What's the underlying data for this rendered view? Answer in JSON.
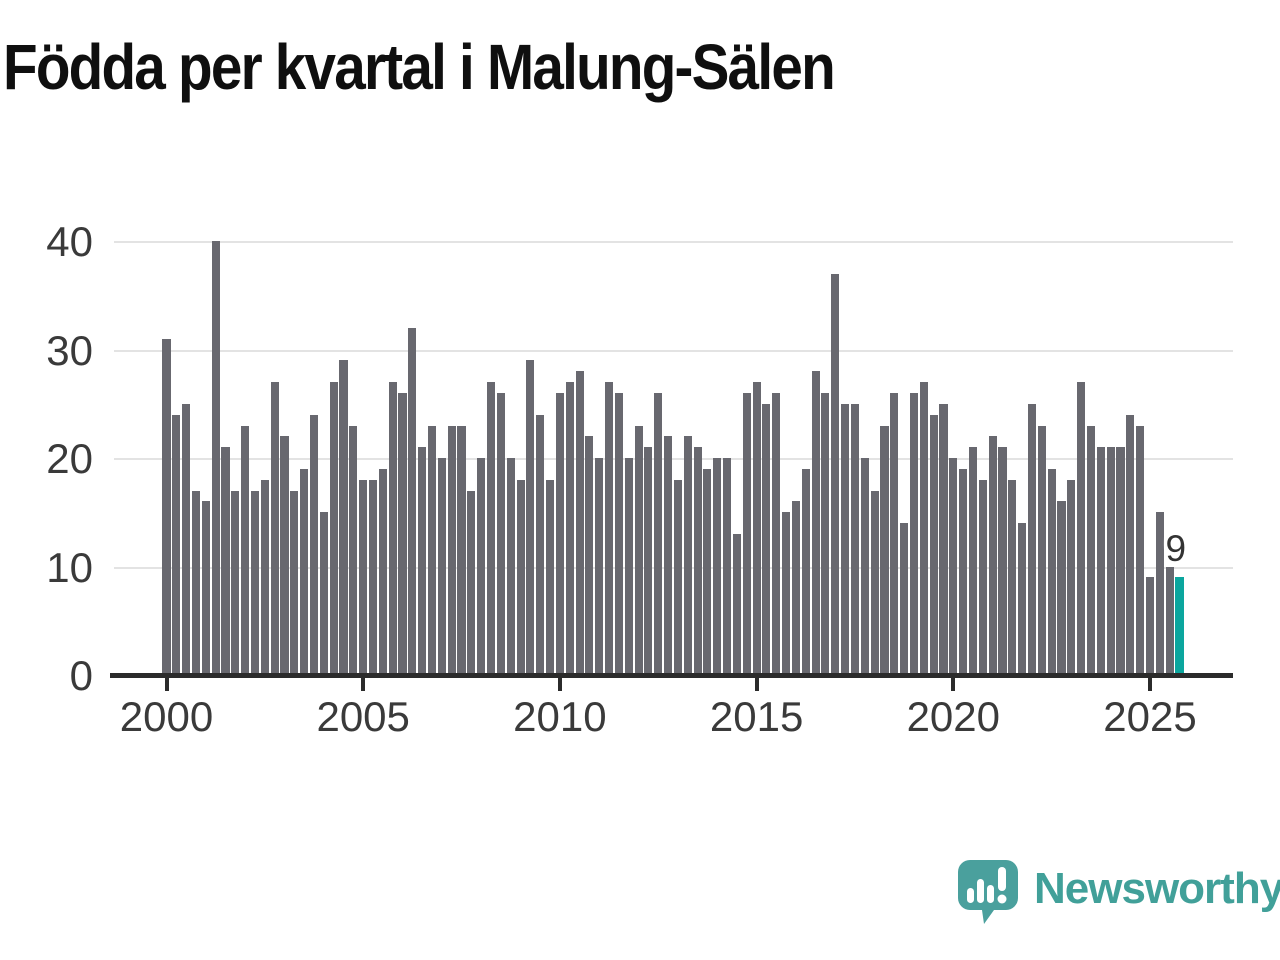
{
  "title": "Födda per kvartal i Malung-Sälen",
  "chart_data": {
    "type": "bar",
    "title": "Födda per kvartal i Malung-Sälen",
    "x_start": "2000 Q1",
    "x_end": "2025 Q4",
    "quarters_per_year": 4,
    "start_year": 2000,
    "values": [
      31,
      24,
      25,
      17,
      16,
      40,
      21,
      17,
      23,
      17,
      18,
      27,
      22,
      17,
      19,
      24,
      15,
      27,
      29,
      23,
      18,
      18,
      19,
      27,
      26,
      32,
      21,
      23,
      20,
      23,
      23,
      17,
      20,
      27,
      26,
      20,
      18,
      29,
      24,
      18,
      26,
      27,
      28,
      22,
      20,
      27,
      26,
      20,
      23,
      21,
      26,
      22,
      18,
      22,
      21,
      19,
      20,
      20,
      13,
      26,
      27,
      25,
      26,
      15,
      16,
      19,
      28,
      26,
      37,
      25,
      25,
      20,
      17,
      23,
      26,
      14,
      26,
      27,
      24,
      25,
      20,
      19,
      21,
      18,
      22,
      21,
      18,
      14,
      25,
      23,
      19,
      16,
      18,
      27,
      23,
      21,
      21,
      21,
      24,
      23,
      9,
      15,
      10,
      9
    ],
    "x_tick_labels": [
      "2000",
      "2005",
      "2010",
      "2015",
      "2020",
      "2025"
    ],
    "y_ticks": [
      0,
      10,
      20,
      30,
      40
    ],
    "ylim": [
      0,
      42
    ],
    "grid": true,
    "legend": false,
    "xlabel": "",
    "ylabel": "",
    "bar_color": "#68686f",
    "highlight": {
      "index": 103,
      "label": "9",
      "color": "#0ba69e"
    }
  },
  "annotation": {
    "label": "9"
  },
  "logo": {
    "text": "Newsworthy",
    "color": "#41a099",
    "icon_color": "#4aa09d",
    "icon": "newsworthy-bubble-chart-icon"
  },
  "axis": {
    "label_color": "#3a3a3a",
    "line_color": "#2b2b2b",
    "grid_color": "#e3e3e3"
  }
}
